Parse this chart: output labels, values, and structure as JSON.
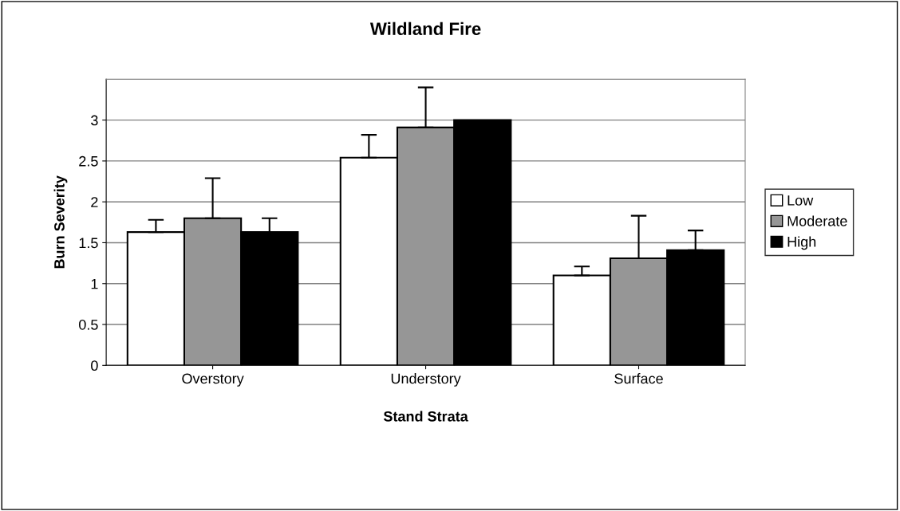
{
  "chart_data": {
    "type": "bar",
    "title": "Wildland Fire",
    "xlabel": "Stand Strata",
    "ylabel": "Burn Severity",
    "categories": [
      "Overstory",
      "Understory",
      "Surface"
    ],
    "series": [
      {
        "name": "Low",
        "color": "#ffffff",
        "values": [
          1.63,
          2.54,
          1.1
        ],
        "errors": [
          [
            1.63,
            1.78
          ],
          [
            2.54,
            2.82
          ],
          [
            1.1,
            1.21
          ]
        ]
      },
      {
        "name": "Moderate",
        "color": "#969696",
        "values": [
          1.8,
          2.91,
          1.31
        ],
        "errors": [
          [
            1.8,
            2.29
          ],
          [
            2.91,
            3.4
          ],
          [
            1.31,
            1.83
          ]
        ]
      },
      {
        "name": "High",
        "color": "#000000",
        "values": [
          1.63,
          3.0,
          1.41
        ],
        "errors": [
          [
            1.63,
            1.8
          ],
          null,
          [
            1.41,
            1.65
          ]
        ]
      }
    ],
    "ylim": [
      0,
      3.5
    ],
    "yticks": [
      0,
      0.5,
      1,
      1.5,
      2,
      2.5,
      3
    ],
    "grid": "y",
    "legend": "right"
  }
}
